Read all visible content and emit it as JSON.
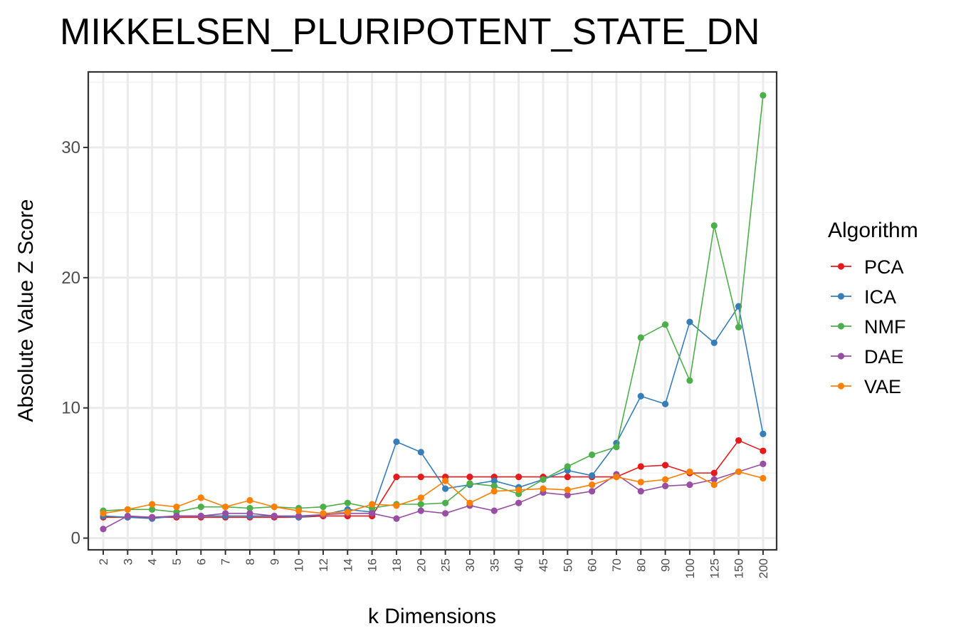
{
  "chart_data": {
    "type": "line",
    "title": "MIKKELSEN_PLURIPOTENT_STATE_DN",
    "xlabel": "k Dimensions",
    "ylabel": "Absolute Value Z Score",
    "categories": [
      "2",
      "3",
      "4",
      "5",
      "6",
      "7",
      "8",
      "9",
      "10",
      "12",
      "14",
      "16",
      "18",
      "20",
      "25",
      "30",
      "35",
      "40",
      "45",
      "50",
      "60",
      "70",
      "80",
      "90",
      "100",
      "125",
      "150",
      "200"
    ],
    "yticks": [
      0,
      10,
      20,
      30
    ],
    "yticklabels": [
      "0",
      "10",
      "20",
      "30"
    ],
    "ylim": [
      -0.9,
      35.8
    ],
    "grid": true,
    "legend": {
      "title": "Algorithm",
      "position": "right"
    },
    "series": [
      {
        "name": "PCA",
        "color": "#e41a1c",
        "values": [
          1.6,
          1.6,
          1.6,
          1.6,
          1.6,
          1.6,
          1.6,
          1.6,
          1.6,
          1.7,
          1.7,
          1.7,
          4.7,
          4.7,
          4.7,
          4.7,
          4.7,
          4.7,
          4.7,
          4.7,
          4.7,
          4.7,
          5.5,
          5.6,
          5.0,
          5.0,
          7.5,
          6.7
        ]
      },
      {
        "name": "ICA",
        "color": "#377eb8",
        "values": [
          1.7,
          1.6,
          1.5,
          1.7,
          1.7,
          1.7,
          1.7,
          1.7,
          1.6,
          1.8,
          2.2,
          2.0,
          7.4,
          6.6,
          3.8,
          4.1,
          4.4,
          3.9,
          4.5,
          5.2,
          4.8,
          7.3,
          10.9,
          10.3,
          16.6,
          15.0,
          17.8,
          8.0
        ]
      },
      {
        "name": "NMF",
        "color": "#4daf4a",
        "values": [
          2.1,
          2.2,
          2.2,
          2.0,
          2.4,
          2.4,
          2.3,
          2.4,
          2.3,
          2.4,
          2.7,
          2.3,
          2.6,
          2.6,
          2.7,
          4.2,
          4.0,
          3.4,
          4.5,
          5.5,
          6.4,
          7.0,
          15.4,
          16.4,
          12.1,
          24.0,
          16.2,
          34.0
        ]
      },
      {
        "name": "DAE",
        "color": "#984ea3",
        "values": [
          0.7,
          1.7,
          1.6,
          1.7,
          1.7,
          1.9,
          1.9,
          1.7,
          1.7,
          1.8,
          1.9,
          1.9,
          1.5,
          2.1,
          1.9,
          2.5,
          2.1,
          2.7,
          3.5,
          3.3,
          3.6,
          4.9,
          3.6,
          4.0,
          4.1,
          4.5,
          5.1,
          5.7
        ]
      },
      {
        "name": "VAE",
        "color": "#ff7f00",
        "values": [
          1.9,
          2.2,
          2.6,
          2.4,
          3.1,
          2.4,
          2.9,
          2.4,
          2.1,
          1.9,
          2.0,
          2.6,
          2.5,
          3.1,
          4.4,
          2.7,
          3.6,
          3.7,
          3.8,
          3.7,
          4.1,
          4.7,
          4.3,
          4.5,
          5.1,
          4.1,
          5.1,
          4.6
        ]
      }
    ]
  }
}
